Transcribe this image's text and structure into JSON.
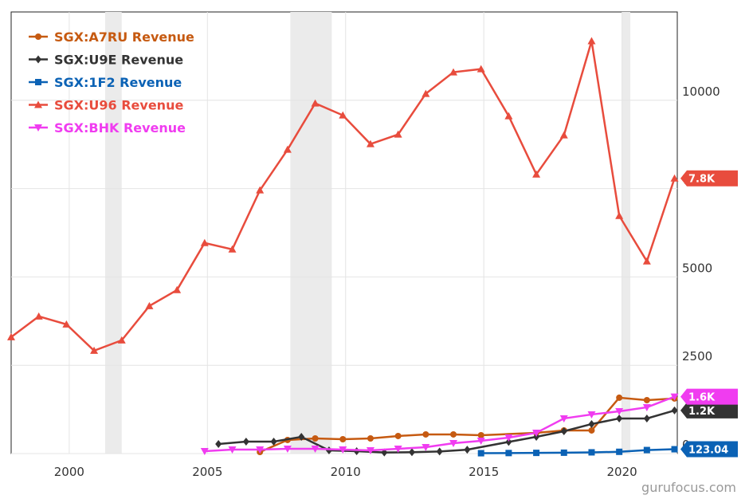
{
  "chart_data": {
    "type": "line",
    "xlim": [
      1997.9,
      2022.0
    ],
    "ylim": [
      0,
      12500
    ],
    "xticks": [
      2000,
      2005,
      2010,
      2015,
      2020
    ],
    "yticks": [
      0,
      2500,
      5000,
      7500,
      10000
    ],
    "grid": true,
    "legend": "top-left",
    "shaded_ranges": [
      [
        2001.3,
        2001.9
      ],
      [
        2008.0,
        2009.5
      ],
      [
        2020.0,
        2020.3
      ]
    ],
    "watermark": "gurufocus.com",
    "series": [
      {
        "name": "SGX:A7RU Revenue",
        "color": "#c65a11",
        "marker": "circle",
        "x": [
          2006.9,
          2007.9,
          2008.9,
          2009.9,
          2010.9,
          2011.9,
          2012.9,
          2013.9,
          2014.9,
          2016.9,
          2017.9,
          2018.9,
          2019.9,
          2020.9,
          2021.9
        ],
        "values": [
          45,
          384,
          429,
          406,
          429,
          497,
          542,
          542,
          519,
          587,
          655,
          655,
          1581,
          1513,
          1560
        ],
        "value_labels": [
          null,
          null,
          null,
          null,
          null,
          null,
          null,
          null,
          null,
          null,
          null,
          null,
          null,
          null,
          null
        ]
      },
      {
        "name": "SGX:U9E Revenue",
        "color": "#333333",
        "marker": "diamond",
        "x": [
          2005.4,
          2006.4,
          2007.4,
          2008.4,
          2009.4,
          2010.4,
          2011.4,
          2012.4,
          2013.4,
          2014.4,
          2015.9,
          2016.9,
          2017.9,
          2018.9,
          2019.9,
          2020.9,
          2021.9
        ],
        "values": [
          271,
          339,
          339,
          474,
          90,
          68,
          30,
          40,
          60,
          110,
          330,
          474,
          632,
          836,
          994,
          994,
          1220
        ],
        "value_labels": [
          null,
          null,
          null,
          null,
          null,
          null,
          null,
          null,
          null,
          null,
          null,
          null,
          null,
          null,
          null,
          null,
          "1.2K"
        ]
      },
      {
        "name": "SGX:1F2 Revenue",
        "color": "#0b62b5",
        "marker": "square",
        "x": [
          2014.9,
          2015.9,
          2016.9,
          2017.9,
          2018.9,
          2019.9,
          2020.9,
          2021.9
        ],
        "values": [
          10,
          15,
          20,
          25,
          35,
          50,
          100,
          123.04
        ],
        "value_labels": [
          null,
          null,
          null,
          null,
          null,
          null,
          null,
          "123.04"
        ]
      },
      {
        "name": "SGX:U96 Revenue",
        "color": "#e84c3d",
        "marker": "triangle",
        "x": [
          1997.9,
          1998.9,
          1999.9,
          2000.9,
          2001.9,
          2002.9,
          2003.9,
          2004.9,
          2005.9,
          2006.9,
          2007.9,
          2008.9,
          2009.9,
          2010.9,
          2011.9,
          2012.9,
          2013.9,
          2014.9,
          2015.9,
          2016.9,
          2017.9,
          2018.9,
          2019.9,
          2020.9,
          2021.9
        ],
        "values": [
          3297,
          3884,
          3658,
          2913,
          3207,
          4178,
          4630,
          5962,
          5781,
          7453,
          8604,
          9914,
          9575,
          8762,
          9033,
          10185,
          10795,
          10885,
          9553,
          7904,
          9011,
          11676,
          6730,
          5443,
          7791
        ],
        "value_labels": [
          null,
          null,
          null,
          null,
          null,
          null,
          null,
          null,
          null,
          null,
          null,
          null,
          null,
          null,
          null,
          null,
          null,
          null,
          null,
          null,
          null,
          null,
          null,
          null,
          "7.8K"
        ]
      },
      {
        "name": "SGX:BHK Revenue",
        "color": "#f03cf0",
        "marker": "triangle-down",
        "x": [
          2004.9,
          2005.9,
          2006.9,
          2007.9,
          2008.9,
          2009.9,
          2010.9,
          2011.9,
          2012.9,
          2013.9,
          2014.9,
          2015.9,
          2016.9,
          2017.9,
          2018.9,
          2019.9,
          2020.9,
          2021.9
        ],
        "values": [
          68,
          113,
          113,
          135,
          135,
          113,
          90,
          135,
          180,
          294,
          361,
          452,
          587,
          994,
          1107,
          1197,
          1310,
          1610
        ],
        "value_labels": [
          null,
          null,
          null,
          null,
          null,
          null,
          null,
          null,
          null,
          null,
          null,
          null,
          null,
          null,
          null,
          null,
          null,
          "1.6K"
        ]
      }
    ]
  }
}
